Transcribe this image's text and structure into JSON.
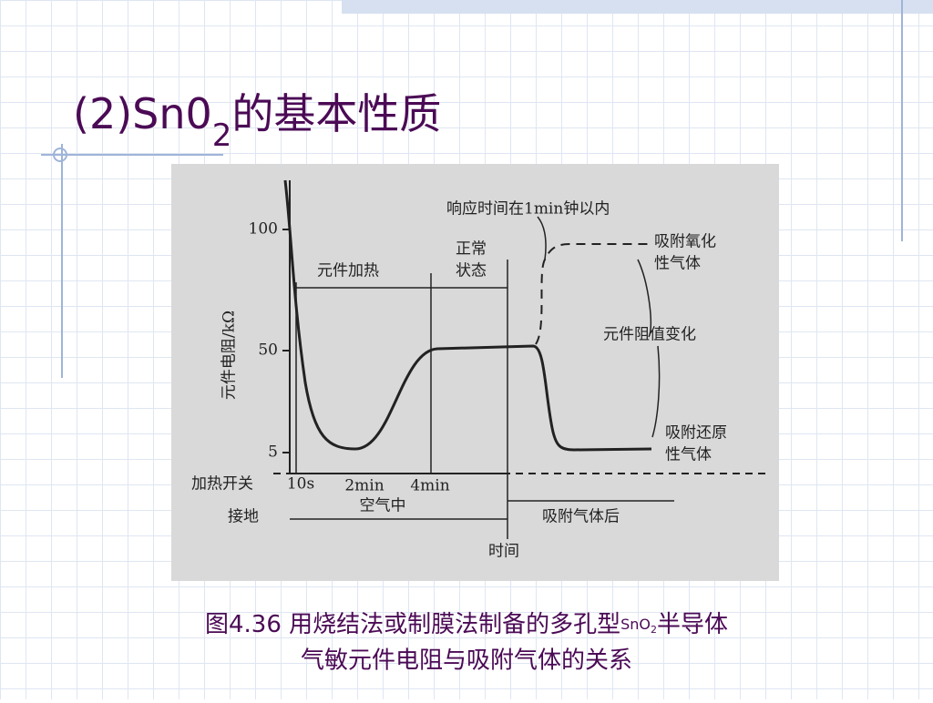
{
  "title": {
    "main": "(2)Sn0",
    "sub": "2",
    "rest": "的基本性质"
  },
  "figure": {
    "response_note": "响应时间在1min钟以内",
    "oxidizing_1": "吸附氧化",
    "oxidizing_2": "性气体",
    "resistance_change": "元件阻值变化",
    "reducing_1": "吸附还原",
    "reducing_2": "性气体",
    "heating": "元件加热",
    "normal_1": "正常",
    "normal_2": "状态",
    "y_label": "元件电阻/kΩ",
    "y_ticks": [
      "100",
      "50",
      "5"
    ],
    "switch": "加热开关",
    "x_ticks": [
      "10s",
      "2min",
      "4min"
    ],
    "in_air": "空气中",
    "ground": "接地",
    "after_gas": "吸附气体后",
    "x_label": "时间"
  },
  "caption": {
    "line1_a": "图4.36 用烧结法或制膜法制备的多孔型",
    "line1_b": "SnO",
    "line1_sub": "2",
    "line1_c": "半导体",
    "line2": "气敏元件电阻与吸附气体的关系"
  }
}
